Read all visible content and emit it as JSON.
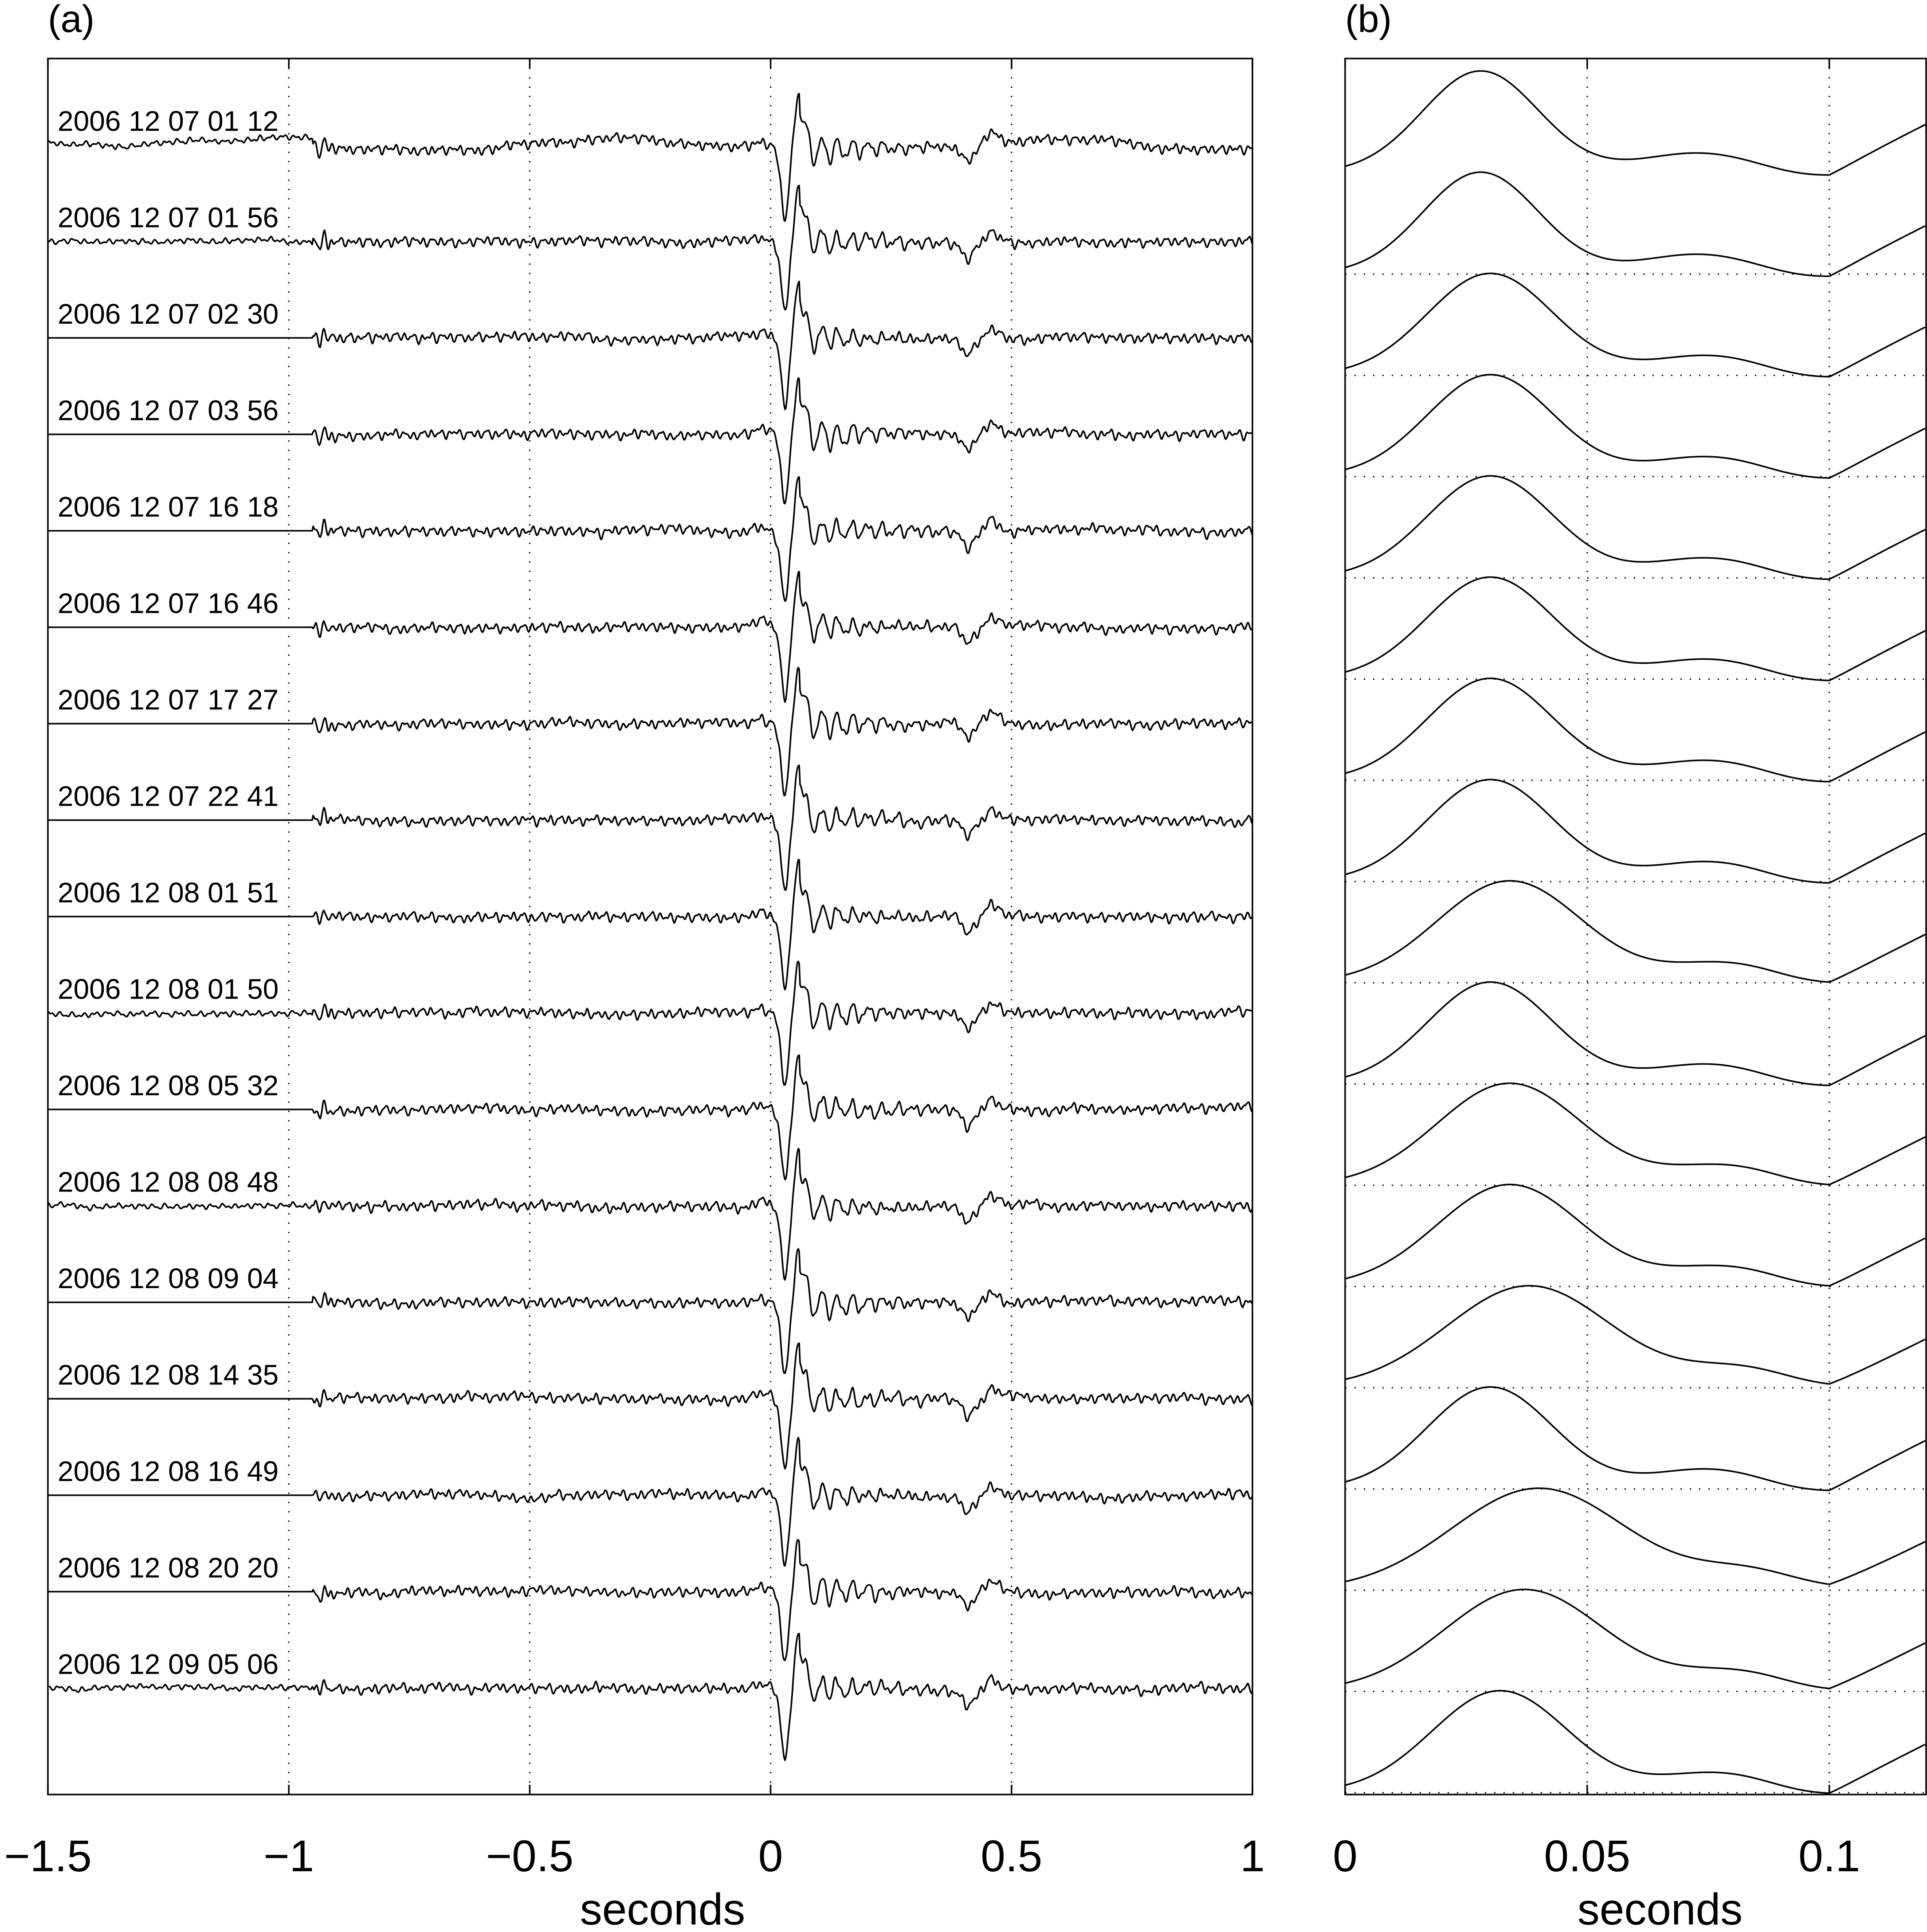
{
  "chart_data": [
    {
      "panel": "(a)",
      "type": "line",
      "xlabel": "seconds",
      "xlim": [
        -1.5,
        1
      ],
      "xticks": [
        -1.5,
        -1,
        -0.5,
        0,
        0.5,
        1
      ],
      "xtick_labels": [
        "−1.5",
        "−1",
        "−0.5",
        "0",
        "0.5",
        "1"
      ],
      "grid": "vertical dotted at x ticks",
      "traces": [
        {
          "label": "2006 12 07 01 12"
        },
        {
          "label": "2006 12 07 01 56"
        },
        {
          "label": "2006 12 07 02 30"
        },
        {
          "label": "2006 12 07 03 56"
        },
        {
          "label": "2006 12 07 16 18"
        },
        {
          "label": "2006 12 07 16 46"
        },
        {
          "label": "2006 12 07 17 27"
        },
        {
          "label": "2006 12 07 22 41"
        },
        {
          "label": "2006 12 08 01 51"
        },
        {
          "label": "2006 12 08 01 50"
        },
        {
          "label": "2006 12 08 05 32"
        },
        {
          "label": "2006 12 08 08 48"
        },
        {
          "label": "2006 12 08 09 04"
        },
        {
          "label": "2006 12 08 14 35"
        },
        {
          "label": "2006 12 08 16 49"
        },
        {
          "label": "2006 12 08 20 20"
        },
        {
          "label": "2006 12 09 05 06"
        }
      ]
    },
    {
      "panel": "(b)",
      "type": "line",
      "xlabel": "seconds",
      "xlim": [
        0,
        0.12
      ],
      "xticks": [
        0,
        0.05,
        0.1
      ],
      "xtick_labels": [
        "0",
        "0.05",
        "0.1"
      ],
      "grid": "dotted at x ticks and trace baselines",
      "traces": [
        {
          "peak_time": 0.028
        },
        {
          "peak_time": 0.028
        },
        {
          "peak_time": 0.03
        },
        {
          "peak_time": 0.03
        },
        {
          "peak_time": 0.03
        },
        {
          "peak_time": 0.03
        },
        {
          "peak_time": 0.03
        },
        {
          "peak_time": 0.03
        },
        {
          "peak_time": 0.034
        },
        {
          "peak_time": 0.03
        },
        {
          "peak_time": 0.034
        },
        {
          "peak_time": 0.034
        },
        {
          "peak_time": 0.038
        },
        {
          "peak_time": 0.03
        },
        {
          "peak_time": 0.04
        },
        {
          "peak_time": 0.037
        },
        {
          "peak_time": 0.032
        }
      ]
    }
  ]
}
